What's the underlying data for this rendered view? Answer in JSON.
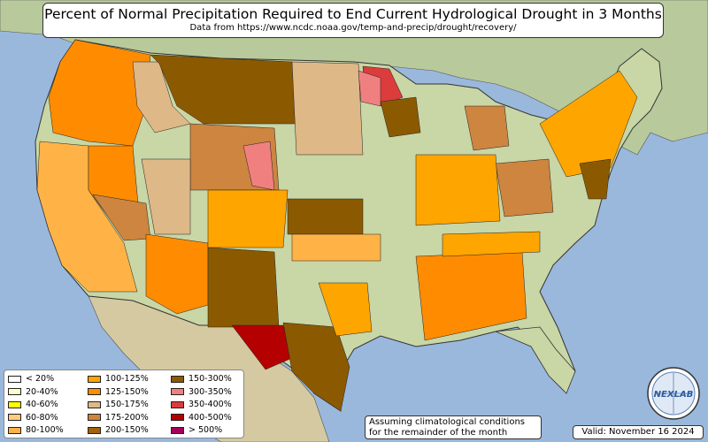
{
  "title": "Percent of Normal Precipitation Required to End Current Hydrological Drought in 3 Months",
  "subtitle": "Data from https://www.ncdc.noaa.gov/temp-and-precip/drought/recovery/",
  "note_line1": "Assuming climatological conditions",
  "note_line2": "for the remainder of the month",
  "valid": "Valid: November 16 2024",
  "logo_text": "NEXLAB",
  "legend": [
    {
      "label": "< 20%",
      "color": "#ffffff"
    },
    {
      "label": "20-40%",
      "color": "#ffffcc"
    },
    {
      "label": "40-60%",
      "color": "#ffff00"
    },
    {
      "label": "60-80%",
      "color": "#ffcc80"
    },
    {
      "label": "80-100%",
      "color": "#ffb347"
    },
    {
      "label": "100-125%",
      "color": "#ffa500"
    },
    {
      "label": "125-150%",
      "color": "#ff8c00"
    },
    {
      "label": "150-175%",
      "color": "#deb887"
    },
    {
      "label": "175-200%",
      "color": "#cd853f"
    },
    {
      "label": "200-150%",
      "color": "#a0620a"
    },
    {
      "label": "150-300%",
      "color": "#8b5a00"
    },
    {
      "label": "300-350%",
      "color": "#f08080"
    },
    {
      "label": "350-400%",
      "color": "#dc3c3c"
    },
    {
      "label": "400-500%",
      "color": "#b40000"
    },
    {
      "label": "> 500%",
      "color": "#a0005a"
    }
  ],
  "colors": {
    "ocean": "#9ab8dc",
    "land": "#c9d6a5",
    "land_dry": "#d8cfa8",
    "canada": "#b5c89a"
  }
}
